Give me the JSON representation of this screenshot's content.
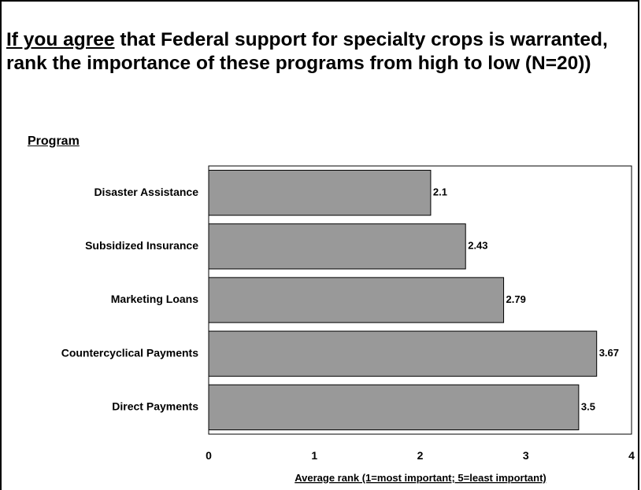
{
  "title_part1": "If you agree",
  "title_part2": " that Federal support for specialty crops is warranted, rank the importance of these programs from high to low (N=20))",
  "chart_data": {
    "type": "bar",
    "orientation": "horizontal",
    "title": "If you agree that Federal support for specialty crops is warranted, rank the importance of these programs from high to low (N=20))",
    "ylabel": "Program",
    "xlabel": "Average rank (1=most important; 5=least important)",
    "categories": [
      "Disaster Assistance",
      "Subsidized Insurance",
      "Marketing Loans",
      "Countercyclical Payments",
      "Direct Payments"
    ],
    "values": [
      2.1,
      2.43,
      2.79,
      3.67,
      3.5
    ],
    "data_labels": [
      "2.1",
      "2.43",
      "2.79",
      "3.67",
      "3.5"
    ],
    "xlim": [
      0,
      4
    ],
    "xticks": [
      "0",
      "1",
      "2",
      "3",
      "4"
    ],
    "grid": false,
    "legend": "none",
    "bar_color": "#999999",
    "bar_edge_color": "#000000"
  }
}
